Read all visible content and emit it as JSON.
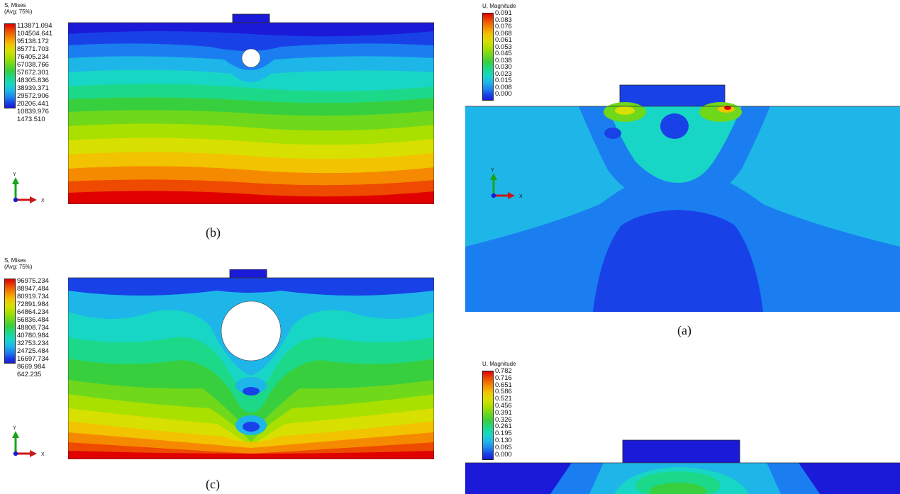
{
  "panels": {
    "b": {
      "field_title": "S, Mises",
      "field_subtitle": "(Avg: 75%)",
      "legend_values": [
        "113871.094",
        "104504.641",
        "95138.172",
        "85771.703",
        "76405.234",
        "67038.766",
        "57672.301",
        "48305.836",
        "38939.371",
        "29572.906",
        "20206.441",
        "10839.976",
        "1473.510"
      ],
      "caption": "(b)"
    },
    "c": {
      "field_title": "S, Mises",
      "field_subtitle": "(Avg: 75%)",
      "legend_values": [
        "96975.234",
        "88947.484",
        "80919.734",
        "72891.984",
        "64864.234",
        "56836.484",
        "48808.734",
        "40780.984",
        "32753.234",
        "24725.484",
        "16697.734",
        "8669.984",
        "642.235"
      ],
      "caption": "(c)"
    },
    "a": {
      "field_title": "U, Magnitude",
      "legend_values": [
        "0.091",
        "0.083",
        "0.076",
        "0.068",
        "0.061",
        "0.053",
        "0.045",
        "0.038",
        "0.030",
        "0.023",
        "0.015",
        "0.008",
        "0.000"
      ],
      "caption": "(a)"
    },
    "d": {
      "field_title": "U, Magnitude",
      "legend_values": [
        "0.782",
        "0.716",
        "0.651",
        "0.586",
        "0.521",
        "0.456",
        "0.391",
        "0.326",
        "0.261",
        "0.195",
        "0.130",
        "0.065",
        "0.000"
      ]
    }
  },
  "axes": {
    "y_label": "Y",
    "x_label": "X"
  },
  "contour_colors": [
    "#e00000",
    "#ee4a00",
    "#f58a00",
    "#f2c300",
    "#d7e000",
    "#a9e000",
    "#6fd81a",
    "#38cf3f",
    "#1cd98a",
    "#18d6c6",
    "#1eb6e8",
    "#1a7ef0",
    "#1842e8",
    "#1a1ad8"
  ]
}
